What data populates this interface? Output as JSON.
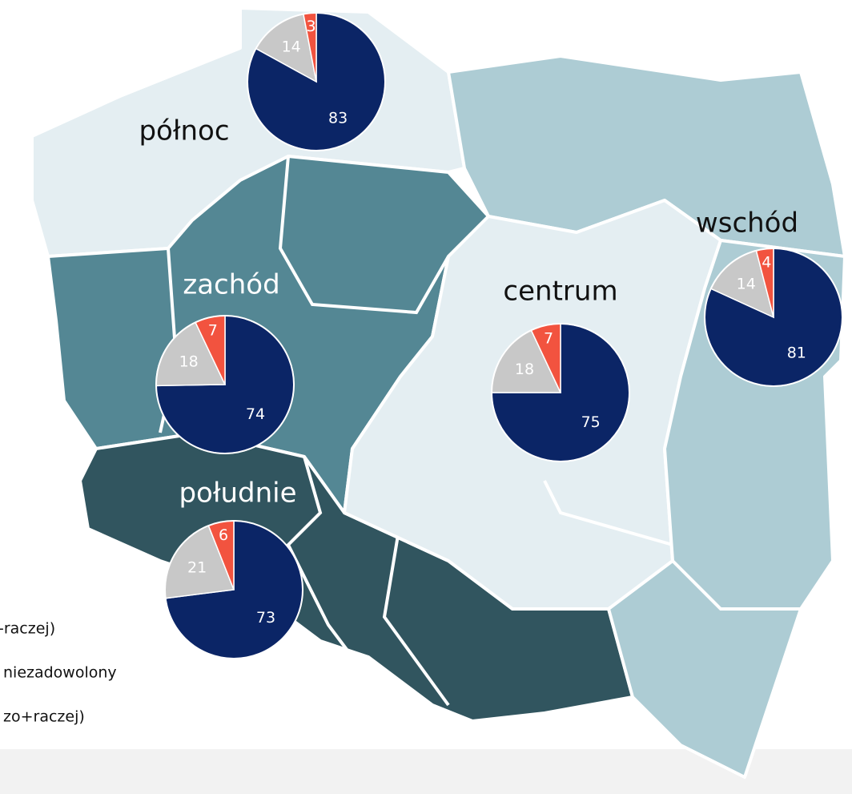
{
  "regions": [
    {
      "label": "północ",
      "values": [
        83,
        14,
        3
      ]
    },
    {
      "label": "zachód",
      "values": [
        74,
        18,
        7
      ]
    },
    {
      "label": "centrum",
      "values": [
        75,
        18,
        7
      ]
    },
    {
      "label": "wschód",
      "values": [
        81,
        14,
        4
      ]
    },
    {
      "label": "południe",
      "values": [
        73,
        21,
        6
      ]
    }
  ],
  "colors": [
    "#0b2566",
    "#c8c8c8",
    "#f2533f"
  ],
  "legend": [
    "-raczej)",
    "niezadowolony",
    "zo+raczej)"
  ]
}
